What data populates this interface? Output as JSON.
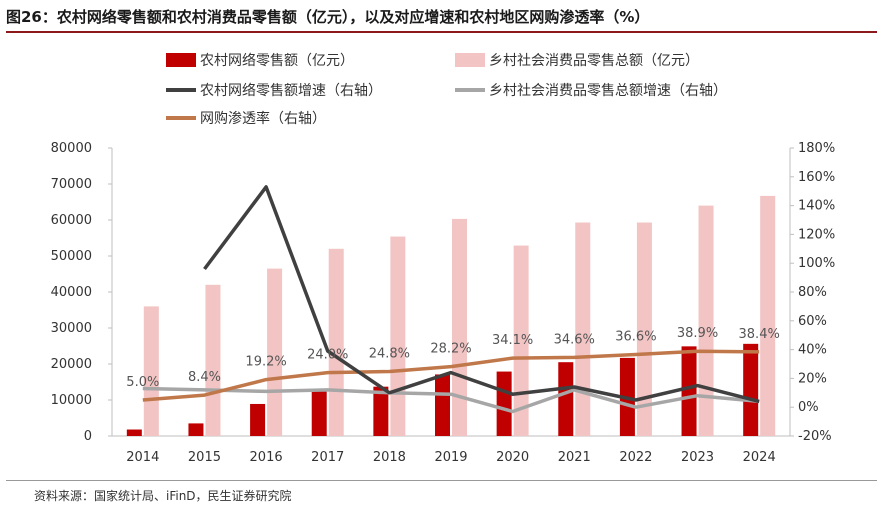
{
  "title": "图26：农村网络零售额和农村消费品零售额（亿元），以及对应增速和农村地区网购渗透率（%）",
  "source": "资料来源：国家统计局、iFinD，民生证券研究院",
  "colors": {
    "online_retail": "#c00000",
    "consumer_goods": "#f2c4c4",
    "online_growth": "#404040",
    "consumer_growth": "#a6a6a6",
    "penetration": "#c0784a"
  },
  "chart_data": {
    "type": "bar",
    "categories": [
      "2014",
      "2015",
      "2016",
      "2017",
      "2018",
      "2019",
      "2020",
      "2021",
      "2022",
      "2023",
      "2024"
    ],
    "ylim": [
      0,
      80000
    ],
    "y_ticks": [
      "0",
      "10000",
      "20000",
      "30000",
      "40000",
      "50000",
      "60000",
      "70000",
      "80000"
    ],
    "y2lim": [
      -20,
      180
    ],
    "y2_ticks": [
      "-20%",
      "0%",
      "20%",
      "40%",
      "60%",
      "80%",
      "100%",
      "120%",
      "140%",
      "160%",
      "180%"
    ],
    "legend_placement": "top",
    "grid": false,
    "series": [
      {
        "name": "农村网络零售额（亿元）",
        "kind": "bar",
        "axis": "left",
        "values": [
          1800,
          3500,
          8900,
          12400,
          13700,
          17100,
          17900,
          20500,
          21700,
          24900,
          25600
        ]
      },
      {
        "name": "乡村社会消费品零售总额（亿元）",
        "kind": "bar",
        "axis": "left",
        "values": [
          36000,
          42000,
          46500,
          52000,
          55400,
          60300,
          52900,
          59300,
          59300,
          64000,
          66700
        ]
      },
      {
        "name": "农村网络零售额增速（右轴）",
        "kind": "line",
        "axis": "right",
        "values": [
          null,
          96,
          153,
          39,
          10,
          24,
          9,
          14,
          5,
          15,
          4
        ]
      },
      {
        "name": "乡村社会消费品零售总额增速（右轴）",
        "kind": "line",
        "axis": "right",
        "values": [
          13,
          12,
          11,
          12,
          10,
          9,
          -3,
          12,
          0,
          8,
          4
        ]
      },
      {
        "name": "网购渗透率（右轴）",
        "kind": "line",
        "axis": "right",
        "values": [
          5.0,
          8.4,
          19.2,
          24.0,
          24.8,
          28.2,
          34.1,
          34.6,
          36.6,
          38.9,
          38.4
        ],
        "labels": [
          "5.0%",
          "8.4%",
          "19.2%",
          "24.0%",
          "24.8%",
          "28.2%",
          "34.1%",
          "34.6%",
          "36.6%",
          "38.9%",
          "38.4%"
        ]
      }
    ]
  }
}
